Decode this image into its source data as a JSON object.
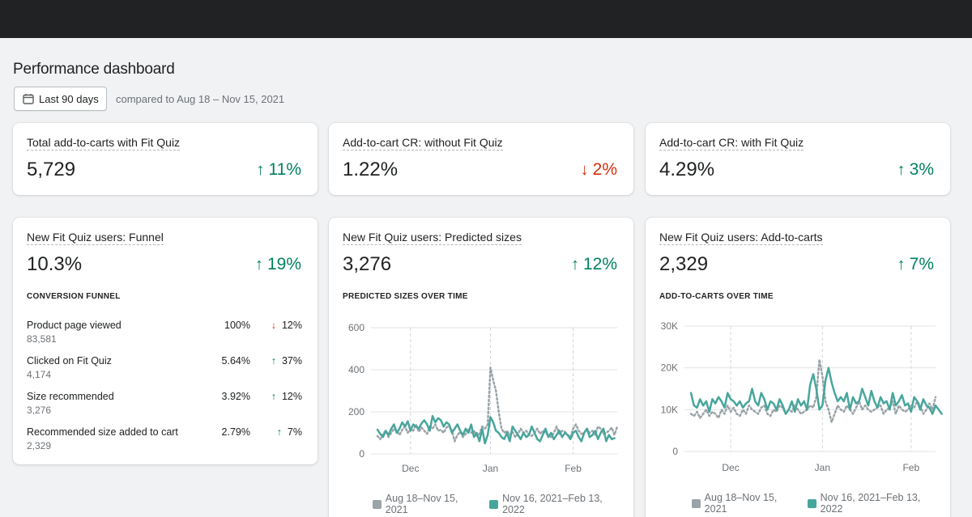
{
  "page": {
    "title": "Performance dashboard"
  },
  "filter": {
    "date_range_label": "Last 90 days",
    "compare_text": "compared to Aug 18 – Nov 15, 2021"
  },
  "colors": {
    "up": "#008060",
    "down": "#d72c0d",
    "current_series": "#47a69c",
    "previous_series": "#9aa3a8"
  },
  "kpis": [
    {
      "title": "Total add-to-carts with Fit Quiz",
      "value": "5,729",
      "delta": "11%",
      "direction": "up"
    },
    {
      "title": "Add-to-cart CR: without Fit Quiz",
      "value": "1.22%",
      "delta": "2%",
      "direction": "down"
    },
    {
      "title": "Add-to-cart CR: with Fit Quiz",
      "value": "4.29%",
      "delta": "3%",
      "direction": "up"
    }
  ],
  "funnel_card": {
    "title": "New Fit Quiz users: Funnel",
    "value": "10.3%",
    "delta": "19%",
    "direction": "up",
    "section_label": "CONVERSION FUNNEL",
    "rows": [
      {
        "label": "Product page viewed",
        "count": "83,581",
        "pct": "100%",
        "delta": "12%",
        "direction": "down"
      },
      {
        "label": "Clicked on Fit Quiz",
        "count": "4,174",
        "pct": "5.64%",
        "delta": "37%",
        "direction": "up"
      },
      {
        "label": "Size recommended",
        "count": "3,276",
        "pct": "3.92%",
        "delta": "12%",
        "direction": "up"
      },
      {
        "label": "Recommended size added to cart",
        "count": "2,329",
        "pct": "2.79%",
        "delta": "7%",
        "direction": "up"
      }
    ]
  },
  "sizes_card": {
    "title": "New Fit Quiz users: Predicted sizes",
    "value": "3,276",
    "delta": "12%",
    "direction": "up",
    "section_label": "PREDICTED SIZES OVER TIME"
  },
  "carts_card": {
    "title": "New Fit Quiz users: Add-to-carts",
    "value": "2,329",
    "delta": "7%",
    "direction": "up",
    "section_label": "ADD-TO-CARTS OVER TIME"
  },
  "chart_data": [
    {
      "type": "line",
      "title": "PREDICTED SIZES OVER TIME",
      "ylim": [
        0,
        600
      ],
      "yticks": [
        "0",
        "200",
        "400",
        "600"
      ],
      "ytick_values": [
        0,
        200,
        400,
        600
      ],
      "xticks": [
        "Dec",
        "Jan",
        "Feb"
      ],
      "xtick_index": [
        12,
        41,
        71
      ],
      "legend": [
        "Aug 18–Nov 15, 2021",
        "Nov 16, 2021–Feb 13, 2022"
      ],
      "series": [
        {
          "name": "Aug 18–Nov 15, 2021",
          "style": "dotted",
          "values": [
            85,
            70,
            95,
            110,
            80,
            100,
            120,
            110,
            90,
            115,
            130,
            100,
            120,
            110,
            140,
            105,
            125,
            110,
            95,
            130,
            120,
            140,
            110,
            115,
            100,
            125,
            135,
            110,
            60,
            90,
            105,
            80,
            95,
            120,
            100,
            110,
            85,
            95,
            130,
            120,
            140,
            410,
            350,
            300,
            200,
            120,
            100,
            110,
            90,
            105,
            80,
            95,
            120,
            100,
            110,
            90,
            85,
            100,
            120,
            95,
            110,
            100,
            90,
            80,
            100,
            130,
            95,
            110,
            105,
            90,
            80,
            120,
            140,
            110,
            95,
            100,
            120,
            100,
            110,
            90,
            130,
            120,
            95,
            100,
            110,
            125,
            90,
            130
          ]
        },
        {
          "name": "Nov 16, 2021–Feb 13, 2022",
          "style": "solid",
          "values": [
            115,
            95,
            80,
            110,
            90,
            120,
            140,
            100,
            120,
            150,
            130,
            155,
            110,
            140,
            130,
            120,
            145,
            160,
            140,
            110,
            180,
            150,
            170,
            160,
            130,
            150,
            140,
            100,
            120,
            140,
            110,
            90,
            120,
            100,
            140,
            80,
            100,
            60,
            120,
            50,
            90,
            175,
            150,
            110,
            100,
            80,
            70,
            100,
            60,
            130,
            110,
            90,
            70,
            100,
            80,
            90,
            130,
            100,
            70,
            60,
            90,
            120,
            80,
            100,
            70,
            90,
            110,
            80,
            100,
            90,
            70,
            100,
            110,
            80,
            60,
            100,
            120,
            80,
            90,
            110,
            70,
            100,
            120,
            60,
            90,
            70,
            75
          ]
        }
      ]
    },
    {
      "type": "line",
      "title": "ADD-TO-CARTS OVER TIME",
      "ylim": [
        0,
        30000
      ],
      "yticks": [
        "0",
        "10K",
        "20K",
        "30K"
      ],
      "ytick_values": [
        0,
        10000,
        20000,
        30000
      ],
      "xticks": [
        "Dec",
        "Jan",
        "Feb"
      ],
      "xtick_index": [
        13,
        43,
        72
      ],
      "legend": [
        "Aug 18–Nov 15, 2021",
        "Nov 16, 2021–Feb 13, 2022"
      ],
      "series": [
        {
          "name": "Aug 18–Nov 15, 2021",
          "style": "dotted",
          "values": [
            9000,
            8500,
            9500,
            8000,
            9000,
            10000,
            8500,
            9500,
            9000,
            8000,
            10000,
            9000,
            11000,
            9500,
            10500,
            9000,
            8500,
            10000,
            9000,
            11000,
            10000,
            9500,
            9000,
            10500,
            11000,
            9000,
            8500,
            10000,
            9500,
            11000,
            10500,
            9000,
            10000,
            9500,
            11000,
            10000,
            9000,
            9500,
            10000,
            11000,
            10500,
            13000,
            22000,
            18000,
            12000,
            10000,
            7000,
            9000,
            11000,
            10000,
            9500,
            11000,
            10000,
            9000,
            10500,
            12000,
            10000,
            11000,
            10000,
            9500,
            10000,
            10500,
            11000,
            9000,
            10000,
            10500,
            12000,
            9000,
            11000,
            10000,
            9500,
            10000,
            11000,
            10500,
            12000,
            11000,
            9000,
            10000,
            11500,
            10000,
            13000
          ]
        },
        {
          "name": "Nov 16, 2021–Feb 13, 2022",
          "style": "solid",
          "values": [
            14000,
            11000,
            10500,
            12500,
            11000,
            12000,
            9500,
            12500,
            11500,
            13000,
            12000,
            10500,
            14000,
            12500,
            12000,
            11000,
            12000,
            10500,
            11500,
            12000,
            15000,
            12000,
            11000,
            14000,
            12500,
            10000,
            12000,
            11500,
            10000,
            12500,
            11000,
            9000,
            10000,
            12000,
            9500,
            12500,
            11000,
            12000,
            10000,
            16000,
            18500,
            15000,
            10000,
            11000,
            17000,
            20000,
            16500,
            14000,
            12000,
            13000,
            12000,
            14000,
            10000,
            13000,
            11500,
            12000,
            15000,
            13000,
            11000,
            14500,
            12000,
            10500,
            13000,
            11500,
            12000,
            10000,
            14000,
            11000,
            12000,
            13500,
            11000,
            11500,
            9500,
            13000,
            12000,
            10000,
            12500,
            11000,
            10500,
            9000,
            11000,
            10000,
            9000
          ]
        }
      ]
    }
  ]
}
